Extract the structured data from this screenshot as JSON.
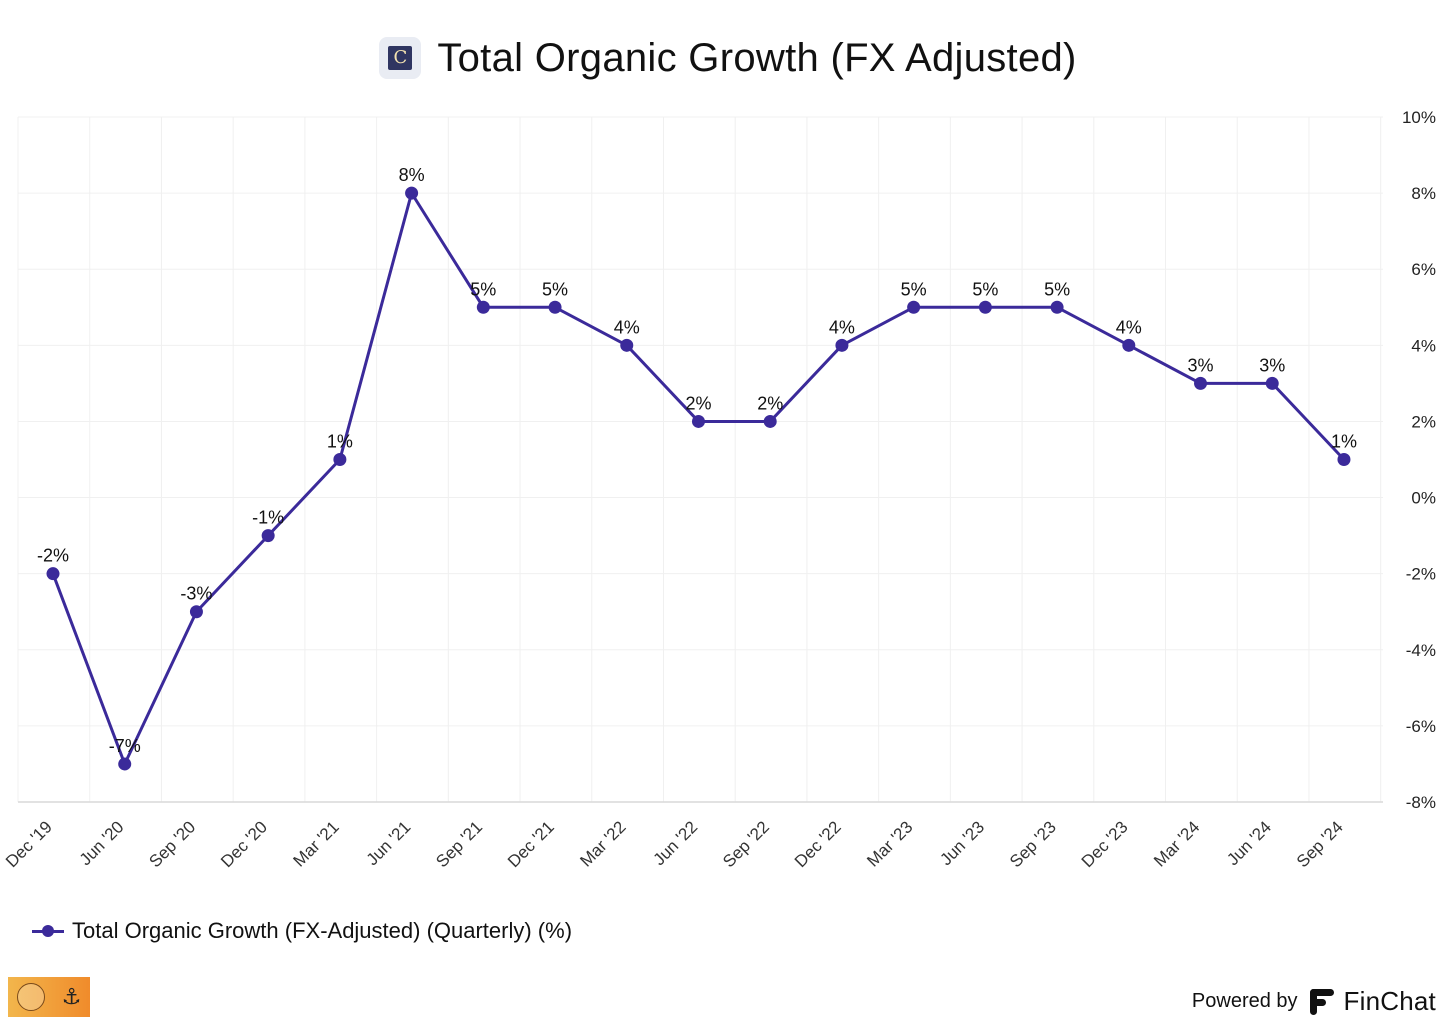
{
  "header": {
    "title": "Total Organic Growth (FX Adjusted)"
  },
  "chart_data": {
    "type": "line",
    "title": "Total Organic Growth (FX Adjusted)",
    "categories": [
      "Dec '19",
      "Jun '20",
      "Sep '20",
      "Dec '20",
      "Mar '21",
      "Jun '21",
      "Sep '21",
      "Dec '21",
      "Mar '22",
      "Jun '22",
      "Sep '22",
      "Dec '22",
      "Mar '23",
      "Jun '23",
      "Sep '23",
      "Dec '23",
      "Mar '24",
      "Jun '24",
      "Sep '24"
    ],
    "series": [
      {
        "name": "Total Organic Growth (FX-Adjusted) (Quarterly) (%)",
        "values": [
          -2,
          -7,
          -3,
          -1,
          1,
          8,
          5,
          5,
          4,
          2,
          2,
          4,
          5,
          5,
          5,
          4,
          3,
          3,
          1
        ],
        "labels": [
          "-2%",
          "-7%",
          "-3%",
          "-1%",
          "1%",
          "8%",
          "5%",
          "5%",
          "4%",
          "2%",
          "2%",
          "4%",
          "5%",
          "5%",
          "5%",
          "4%",
          "3%",
          "3%",
          "1%"
        ],
        "color": "#3b2a9a"
      }
    ],
    "ylim": [
      -8,
      10
    ],
    "yticks": [
      10,
      8,
      6,
      4,
      2,
      0,
      -2,
      -4,
      -6,
      -8
    ],
    "ytick_labels": [
      "10%",
      "8%",
      "6%",
      "4%",
      "2%",
      "0%",
      "-2%",
      "-4%",
      "-6%",
      "-8%"
    ],
    "y_axis_side": "right",
    "grid": true,
    "legend": "bottom-left",
    "xlabel": "",
    "ylabel": ""
  },
  "legend": {
    "label": "Total Organic Growth (FX-Adjusted) (Quarterly) (%)"
  },
  "footer": {
    "powered_label": "Powered by",
    "brand": "FinChat"
  },
  "colors": {
    "series": "#3b2a9a",
    "grid": "#f0f0f0",
    "axis": "#d9d9d9"
  }
}
